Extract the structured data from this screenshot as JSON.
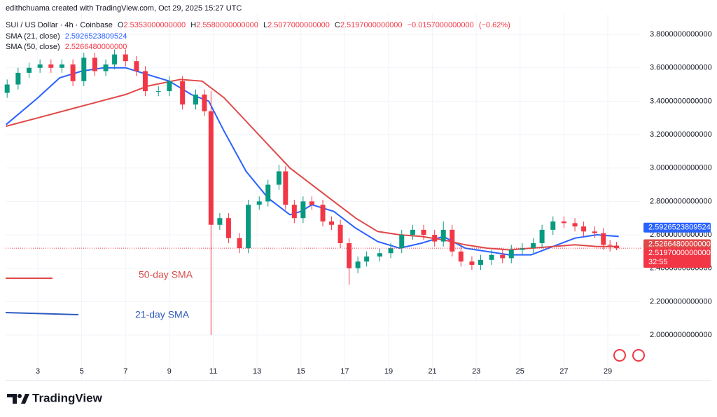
{
  "chart_data": {
    "type": "candlestick",
    "attribution": "edithchuama created with TradingView.com, Oct 29, 2025 15:27 UTC",
    "symbol": "SUI / US Dollar · 4h · Coinbase",
    "ohlc_header": {
      "open_prefix": "O",
      "open": {
        "value": 2.5353,
        "label": "2.5353000000000"
      },
      "high_prefix": "H",
      "high": {
        "value": 2.558,
        "label": "2.5580000000000"
      },
      "low_prefix": "L",
      "low": {
        "value": 2.5077,
        "label": "2.5077000000000"
      },
      "close_prefix": "C",
      "close": {
        "value": 2.5197,
        "label": "2.5197000000000"
      },
      "change": {
        "value": -0.0157,
        "label": "−0.0157000000000"
      },
      "change_pct": {
        "value": -0.62,
        "label": "(−0.62%)"
      }
    },
    "up_color": "#089981",
    "down_color": "#f23645",
    "x": [
      1.6,
      2.1,
      2.6,
      3.1,
      3.6,
      4.1,
      4.6,
      5.1,
      5.6,
      6.1,
      6.5,
      7.0,
      7.5,
      7.9,
      8.5,
      9.0,
      9.6,
      10.2,
      10.6,
      10.9,
      11.3,
      11.7,
      12.2,
      12.6,
      13.1,
      13.5,
      14.0,
      14.3,
      14.7,
      15.1,
      15.5,
      16.0,
      16.4,
      16.8,
      17.2,
      17.6,
      18.0,
      18.6,
      19.1,
      19.6,
      20.1,
      20.6,
      21.1,
      21.5,
      21.9,
      22.3,
      22.8,
      23.2,
      23.7,
      24.2,
      24.6,
      25.1,
      25.6,
      26.0,
      26.5,
      27.0,
      27.5,
      27.9,
      28.4,
      28.8,
      29.1,
      29.4
    ],
    "open": [
      3.45,
      3.5,
      3.57,
      3.6,
      3.62,
      3.6,
      3.62,
      3.52,
      3.66,
      3.58,
      3.62,
      3.68,
      3.64,
      3.58,
      3.46,
      3.46,
      3.52,
      3.38,
      3.44,
      3.34,
      2.66,
      2.7,
      2.58,
      2.52,
      2.78,
      2.8,
      2.9,
      2.98,
      2.78,
      2.7,
      2.8,
      2.78,
      2.68,
      2.66,
      2.55,
      2.4,
      2.44,
      2.47,
      2.49,
      2.52,
      2.6,
      2.63,
      2.6,
      2.56,
      2.63,
      2.5,
      2.44,
      2.42,
      2.45,
      2.48,
      2.46,
      2.51,
      2.52,
      2.55,
      2.63,
      2.68,
      2.67,
      2.65,
      2.62,
      2.61,
      2.54,
      2.5353
    ],
    "high": [
      3.53,
      3.6,
      3.63,
      3.65,
      3.65,
      3.65,
      3.65,
      3.69,
      3.69,
      3.65,
      3.71,
      3.71,
      3.67,
      3.61,
      3.49,
      3.55,
      3.55,
      3.47,
      3.47,
      3.46,
      2.73,
      2.73,
      2.61,
      2.81,
      2.83,
      2.93,
      3.02,
      3.01,
      2.81,
      2.83,
      2.83,
      2.81,
      2.71,
      2.69,
      2.58,
      2.47,
      2.5,
      2.52,
      2.55,
      2.63,
      2.66,
      2.66,
      2.63,
      2.68,
      2.66,
      2.53,
      2.47,
      2.48,
      2.51,
      2.51,
      2.54,
      2.55,
      2.58,
      2.66,
      2.71,
      2.71,
      2.7,
      2.68,
      2.65,
      2.64,
      2.57,
      2.558
    ],
    "low": [
      3.42,
      3.47,
      3.54,
      3.57,
      3.57,
      3.57,
      3.49,
      3.49,
      3.55,
      3.55,
      3.59,
      3.61,
      3.55,
      3.43,
      3.43,
      3.43,
      3.35,
      3.35,
      3.31,
      2.0,
      2.63,
      2.55,
      2.49,
      2.49,
      2.75,
      2.77,
      2.87,
      2.75,
      2.67,
      2.67,
      2.75,
      2.65,
      2.63,
      2.52,
      2.3,
      2.37,
      2.41,
      2.44,
      2.46,
      2.49,
      2.57,
      2.57,
      2.53,
      2.53,
      2.47,
      2.41,
      2.39,
      2.39,
      2.42,
      2.43,
      2.43,
      2.48,
      2.49,
      2.52,
      2.6,
      2.64,
      2.62,
      2.59,
      2.58,
      2.51,
      2.5,
      2.5077
    ],
    "close": [
      3.5,
      3.57,
      3.6,
      3.62,
      3.6,
      3.62,
      3.52,
      3.66,
      3.58,
      3.62,
      3.68,
      3.64,
      3.58,
      3.46,
      3.46,
      3.52,
      3.38,
      3.44,
      3.34,
      2.66,
      2.7,
      2.58,
      2.52,
      2.78,
      2.8,
      2.9,
      2.98,
      2.78,
      2.7,
      2.8,
      2.78,
      2.68,
      2.66,
      2.55,
      2.4,
      2.44,
      2.47,
      2.49,
      2.52,
      2.6,
      2.63,
      2.6,
      2.56,
      2.63,
      2.5,
      2.44,
      2.42,
      2.45,
      2.48,
      2.46,
      2.51,
      2.52,
      2.55,
      2.63,
      2.68,
      2.67,
      2.65,
      2.62,
      2.61,
      2.54,
      2.5353,
      2.5197
    ],
    "series": [
      {
        "name": "SMA (21, close)",
        "color": "#2962ff",
        "last": 2.5926523809524,
        "x": [
          1.55,
          3,
          4,
          5,
          6,
          7,
          8,
          9,
          10,
          10.8,
          11.5,
          12.5,
          13.5,
          14.5,
          15,
          15.5,
          16.5,
          17.5,
          18.5,
          19.5,
          20.5,
          21.5,
          22.5,
          23.5,
          24.5,
          25.5,
          26.5,
          27.5,
          28.5,
          29.5
        ],
        "values": [
          3.26,
          3.42,
          3.54,
          3.58,
          3.6,
          3.6,
          3.56,
          3.52,
          3.44,
          3.4,
          3.22,
          2.98,
          2.82,
          2.72,
          2.74,
          2.78,
          2.74,
          2.64,
          2.56,
          2.52,
          2.55,
          2.59,
          2.52,
          2.5,
          2.48,
          2.48,
          2.53,
          2.58,
          2.6,
          2.59
        ]
      },
      {
        "name": "SMA (50, close)",
        "color": "#e04848",
        "last": {
          "value": 2.526648,
          "label": "2.5266480000000"
        },
        "x": [
          1.55,
          3,
          5,
          7,
          8,
          9.5,
          10.5,
          11.5,
          12.5,
          13.5,
          14.5,
          15.5,
          16.5,
          17.5,
          18.5,
          19.5,
          20.5,
          21.5,
          22.5,
          23.5,
          24.5,
          25.5,
          26.5,
          27.5,
          28.5,
          29.5
        ],
        "values": [
          3.25,
          3.3,
          3.37,
          3.44,
          3.49,
          3.53,
          3.52,
          3.42,
          3.28,
          3.14,
          3.0,
          2.9,
          2.8,
          2.7,
          2.62,
          2.6,
          2.59,
          2.57,
          2.54,
          2.52,
          2.51,
          2.52,
          2.53,
          2.54,
          2.53,
          2.53
        ]
      }
    ],
    "countdown": "32:55",
    "annotations": [
      {
        "text": "50-day SMA",
        "color": "#d84a4a"
      },
      {
        "text": "21-day SMA",
        "color": "#2d5bbf"
      }
    ],
    "xlim": [
      1.53,
      30.5
    ],
    "xticks": [
      3,
      5,
      7,
      9,
      11,
      13,
      15,
      17,
      19,
      21,
      23,
      25,
      27,
      29
    ],
    "ylim": [
      1.74,
      3.88
    ],
    "yticks": [
      {
        "value": 2.0,
        "label": "2.0000000000000"
      },
      {
        "value": 2.2,
        "label": "2.2000000000000"
      },
      {
        "value": 2.4,
        "label": "2.4000000000000"
      },
      {
        "value": 2.6,
        "label": "2.6000000000000"
      },
      {
        "value": 2.8,
        "label": "2.8000000000000"
      },
      {
        "value": 3.0,
        "label": "3.0000000000000"
      },
      {
        "value": 3.2,
        "label": "3.2000000000000"
      },
      {
        "value": 3.4,
        "label": "3.4000000000000"
      },
      {
        "value": 3.6,
        "label": "3.6000000000000"
      },
      {
        "value": 3.8,
        "label": "3.8000000000000"
      }
    ],
    "grid": true,
    "footer": "TradingView"
  }
}
